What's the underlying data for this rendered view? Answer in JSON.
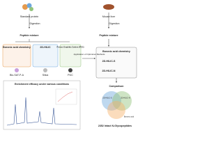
{
  "left": {
    "source": "Standard protein",
    "step": "Digestion",
    "product": "Peptide mixture",
    "methods": [
      "Boronic acid chemistry",
      "2D-HILIC",
      "Porous Graphitic Carbon (PGC)"
    ],
    "materials": [
      "Bio-SAT-P-A",
      "Silica",
      "PGC"
    ],
    "chart_title": "Enrichment efficacy under various conditions"
  },
  "right": {
    "source": "Mouse liver",
    "step": "Digestion",
    "product": "Peptide mixture",
    "methods": [
      "Boronic acid chemistry",
      "2D-HILIC-S",
      "2D-HILIC-N"
    ]
  },
  "application": "Application of Optimized Methods",
  "comparison": {
    "title": "Comparison",
    "sets": [
      "2D-HILIC-S",
      "2D-HILIC-N",
      "Boronic acid"
    ],
    "caption": "2352 Intact N-Glycopeptides"
  }
}
